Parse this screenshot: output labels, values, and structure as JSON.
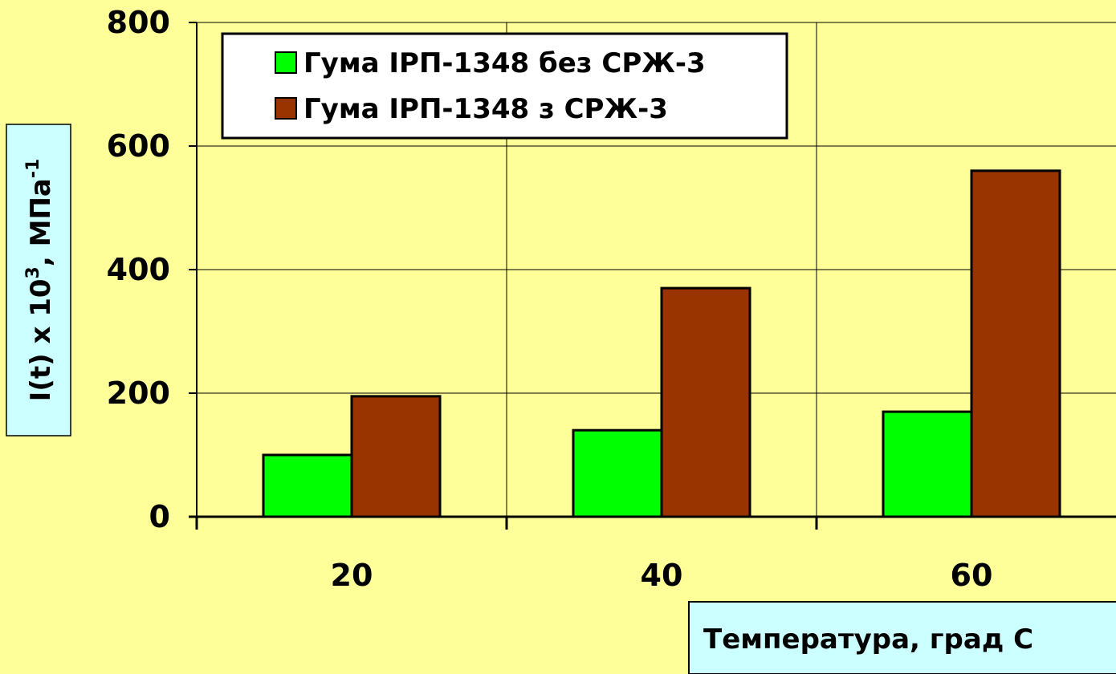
{
  "chart_data": {
    "type": "bar",
    "categories": [
      "20",
      "40",
      "60"
    ],
    "series": [
      {
        "name": "Гума ІРП-1348 без СРЖ-3",
        "color": "#00ff00",
        "values": [
          100,
          140,
          170
        ]
      },
      {
        "name": "Гума ІРП-1348 з СРЖ-3",
        "color": "#993300",
        "values": [
          195,
          370,
          560
        ]
      }
    ],
    "ylim": [
      0,
      800
    ],
    "yticks": [
      0,
      200,
      400,
      600,
      800
    ],
    "grid": true,
    "y_label": [
      "I(t) x 10",
      "3",
      ", МПа",
      "-1"
    ],
    "x_label": "Температура, град С"
  }
}
